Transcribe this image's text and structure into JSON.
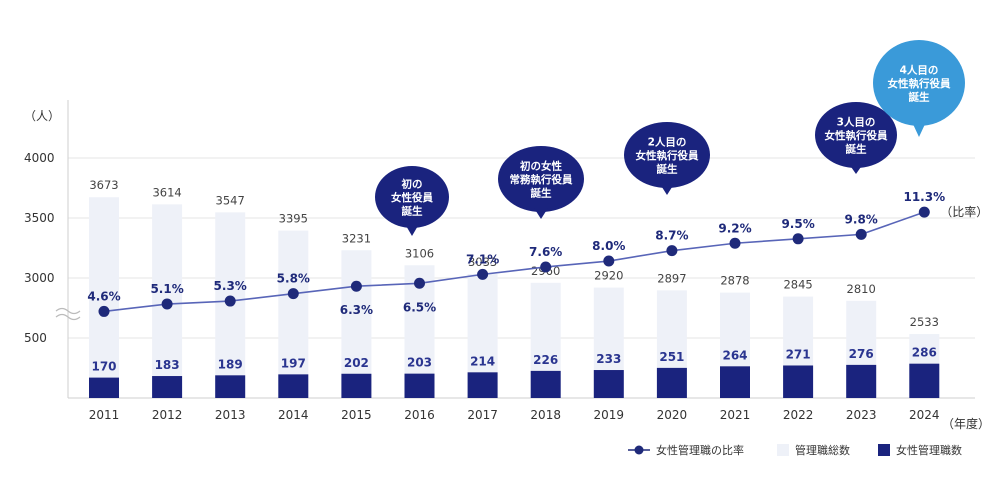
{
  "chart_data": {
    "type": "bar",
    "y_unit": "（人）",
    "x_unit": "（年度）",
    "ratio_unit": "（比率）",
    "y_ticks": [
      "500",
      "3000",
      "3500",
      "4000"
    ],
    "categories": [
      "2011",
      "2012",
      "2013",
      "2014",
      "2015",
      "2016",
      "2017",
      "2018",
      "2019",
      "2020",
      "2021",
      "2022",
      "2023",
      "2024"
    ],
    "series": [
      {
        "name": "管理職総数",
        "kind": "bar",
        "color": "#eef1f8",
        "values": [
          3673,
          3614,
          3547,
          3395,
          3231,
          3106,
          3033,
          2960,
          2920,
          2897,
          2878,
          2845,
          2810,
          2533
        ],
        "labels": [
          "3673",
          "3614",
          "3547",
          "3395",
          "3231",
          "3106",
          "3033",
          "2960",
          "2920",
          "2897",
          "2878",
          "2845",
          "2810",
          "2533"
        ]
      },
      {
        "name": "女性管理職数",
        "kind": "bar",
        "color": "#1a237e",
        "values": [
          170,
          183,
          189,
          197,
          202,
          203,
          214,
          226,
          233,
          251,
          264,
          271,
          276,
          286
        ],
        "labels": [
          "170",
          "183",
          "189",
          "197",
          "202",
          "203",
          "214",
          "226",
          "233",
          "251",
          "264",
          "271",
          "276",
          "286"
        ]
      },
      {
        "name": "女性管理職の比率",
        "kind": "line",
        "color": "#1f2a7a",
        "values": [
          4.6,
          5.1,
          5.3,
          5.8,
          6.3,
          6.5,
          7.1,
          7.6,
          8.0,
          8.7,
          9.2,
          9.5,
          9.8,
          11.3
        ],
        "labels": [
          "4.6%",
          "5.1%",
          "5.3%",
          "5.8%",
          "6.3%",
          "6.5%",
          "7.1%",
          "7.6%",
          "8.0%",
          "8.7%",
          "9.2%",
          "9.5%",
          "9.8%",
          "11.3%"
        ]
      }
    ],
    "annotations": [
      {
        "category": "2016",
        "lines": [
          "初の",
          "女性役員",
          "誕生"
        ],
        "color": "#1a237e"
      },
      {
        "category": "2018",
        "lines": [
          "初の女性",
          "常務執行役員",
          "誕生"
        ],
        "color": "#1a237e"
      },
      {
        "category": "2020",
        "lines": [
          "2人目の",
          "女性執行役員",
          "誕生"
        ],
        "color": "#1a237e"
      },
      {
        "category": "2023",
        "lines": [
          "3人目の",
          "女性執行役員",
          "誕生"
        ],
        "color": "#1a237e"
      },
      {
        "category": "2024",
        "lines": [
          "4人目の",
          "女性執行役員",
          "誕生"
        ],
        "color": "#3a9ad9"
      }
    ],
    "legend": {
      "placement": "bottom-right",
      "items": [
        "女性管理職の比率",
        "管理職総数",
        "女性管理職数"
      ]
    },
    "axis_break": true,
    "grid": true
  }
}
